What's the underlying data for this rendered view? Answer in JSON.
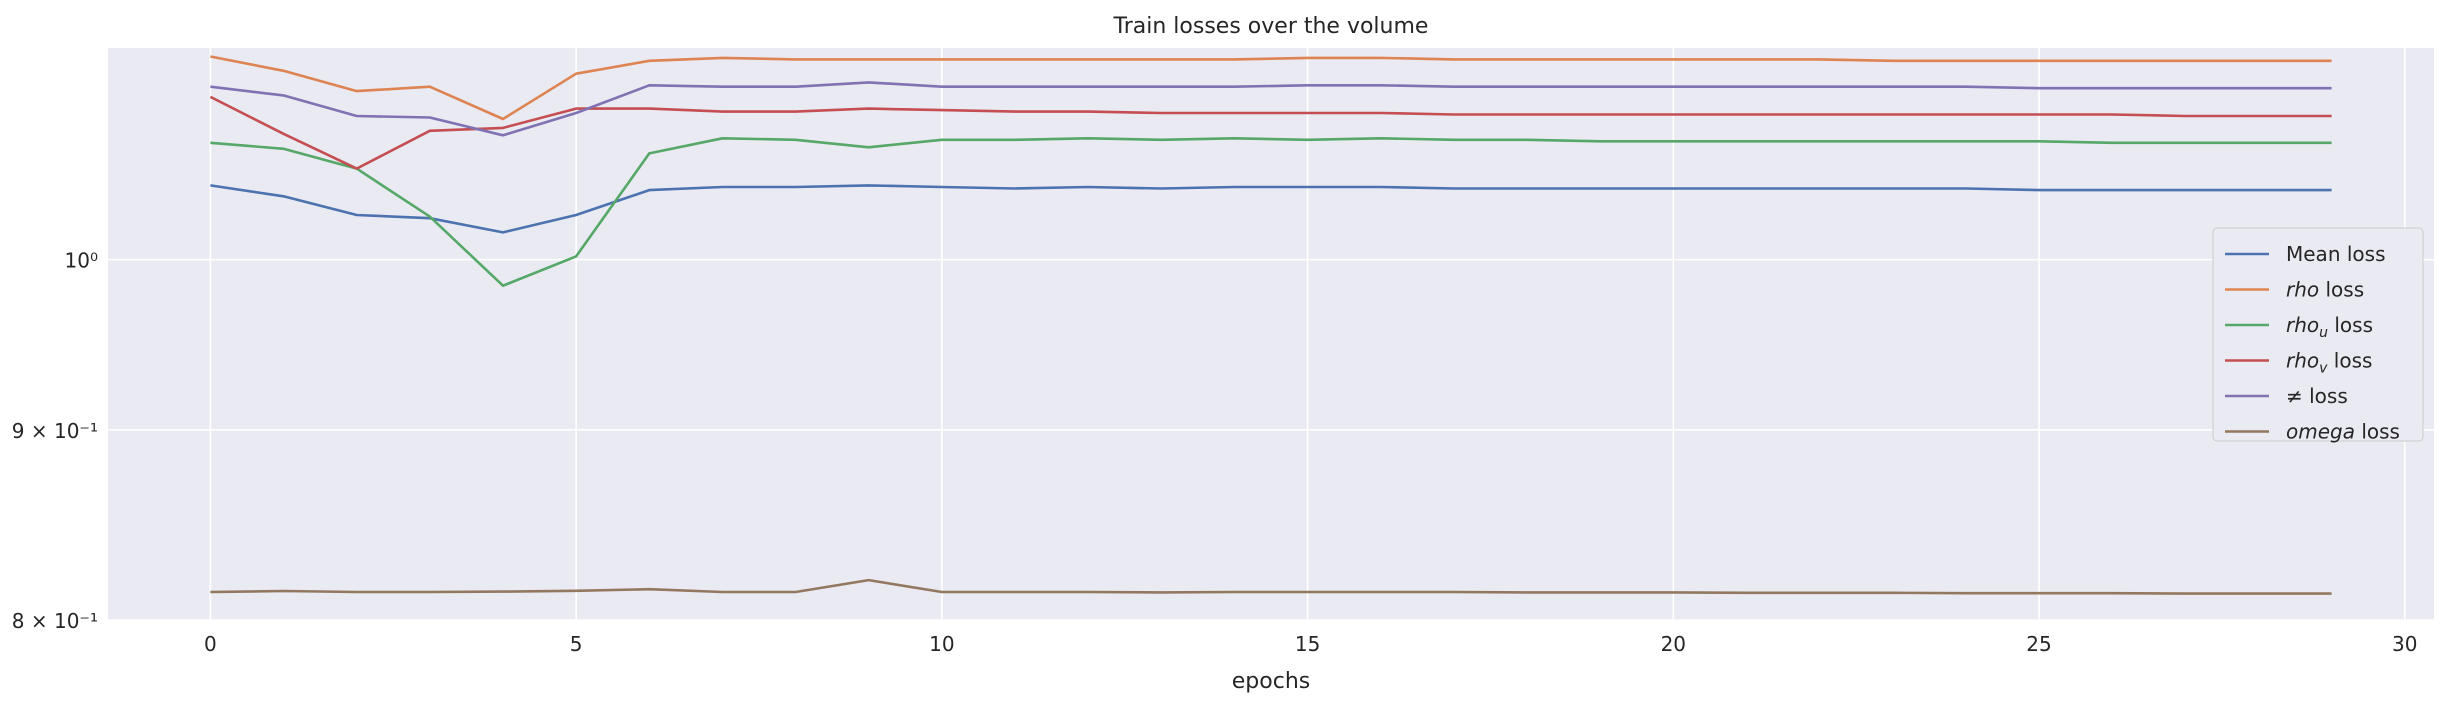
{
  "chart_data": {
    "type": "line",
    "title": "Train losses over the volume",
    "xlabel": "epochs",
    "ylabel": "",
    "xlim": [
      -1.4,
      30.4
    ],
    "ylim": [
      0.8,
      1.14
    ],
    "yscale": "log",
    "grid": true,
    "legend_position": "center-right",
    "x_ticks": [
      0,
      5,
      10,
      15,
      20,
      25,
      30
    ],
    "y_ticks": [
      {
        "value": 0.8,
        "label": "8 × 10⁻¹"
      },
      {
        "value": 0.9,
        "label": "9 × 10⁻¹"
      },
      {
        "value": 1.0,
        "label": "10⁰"
      }
    ],
    "x": [
      0,
      1,
      2,
      3,
      4,
      5,
      6,
      7,
      8,
      9,
      10,
      11,
      12,
      13,
      14,
      15,
      16,
      17,
      18,
      19,
      20,
      21,
      22,
      23,
      24,
      25,
      26,
      27,
      28,
      29
    ],
    "series": [
      {
        "name": "Mean loss",
        "color": "#4c72b0",
        "values": [
          1.047,
          1.04,
          1.028,
          1.026,
          1.017,
          1.028,
          1.044,
          1.046,
          1.046,
          1.047,
          1.046,
          1.045,
          1.046,
          1.045,
          1.046,
          1.046,
          1.046,
          1.045,
          1.045,
          1.045,
          1.045,
          1.045,
          1.045,
          1.045,
          1.045,
          1.044,
          1.044,
          1.044,
          1.044,
          1.044
        ]
      },
      {
        "name": "rho loss",
        "color": "#dd8452",
        "values": [
          1.134,
          1.124,
          1.11,
          1.113,
          1.091,
          1.122,
          1.131,
          1.133,
          1.132,
          1.132,
          1.132,
          1.132,
          1.132,
          1.132,
          1.132,
          1.133,
          1.133,
          1.132,
          1.132,
          1.132,
          1.132,
          1.132,
          1.132,
          1.131,
          1.131,
          1.131,
          1.131,
          1.131,
          1.131,
          1.131
        ]
      },
      {
        "name": "rho_u loss",
        "color": "#55a868",
        "values": [
          1.075,
          1.071,
          1.058,
          1.027,
          0.984,
          1.002,
          1.068,
          1.078,
          1.077,
          1.072,
          1.077,
          1.077,
          1.078,
          1.077,
          1.078,
          1.077,
          1.078,
          1.077,
          1.077,
          1.076,
          1.076,
          1.076,
          1.076,
          1.076,
          1.076,
          1.076,
          1.075,
          1.075,
          1.075,
          1.075
        ]
      },
      {
        "name": "rho_v loss",
        "color": "#c44e52",
        "values": [
          1.106,
          1.081,
          1.058,
          1.083,
          1.085,
          1.098,
          1.098,
          1.096,
          1.096,
          1.098,
          1.097,
          1.096,
          1.096,
          1.095,
          1.095,
          1.095,
          1.095,
          1.094,
          1.094,
          1.094,
          1.094,
          1.094,
          1.094,
          1.094,
          1.094,
          1.094,
          1.094,
          1.093,
          1.093,
          1.093
        ]
      },
      {
        "name": "≠ loss",
        "color": "#8172b3",
        "values": [
          1.113,
          1.107,
          1.093,
          1.092,
          1.08,
          1.095,
          1.114,
          1.113,
          1.113,
          1.116,
          1.113,
          1.113,
          1.113,
          1.113,
          1.113,
          1.114,
          1.114,
          1.113,
          1.113,
          1.113,
          1.113,
          1.113,
          1.113,
          1.113,
          1.113,
          1.112,
          1.112,
          1.112,
          1.112,
          1.112
        ]
      },
      {
        "name": "omega loss",
        "color": "#937860",
        "values": [
          0.814,
          0.8145,
          0.814,
          0.814,
          0.8142,
          0.8146,
          0.8154,
          0.814,
          0.814,
          0.82,
          0.814,
          0.814,
          0.814,
          0.8138,
          0.814,
          0.814,
          0.814,
          0.814,
          0.8138,
          0.8138,
          0.8138,
          0.8136,
          0.8136,
          0.8136,
          0.8134,
          0.8134,
          0.8134,
          0.8132,
          0.8132,
          0.8132
        ]
      }
    ],
    "legend": [
      {
        "base": "Mean loss",
        "sym": "",
        "sub": "",
        "rest": ""
      },
      {
        "base": "",
        "sym": "rho",
        "sub": "",
        "rest": " loss"
      },
      {
        "base": "",
        "sym": "rho",
        "sub": "u",
        "rest": " loss"
      },
      {
        "base": "",
        "sym": "rho",
        "sub": "v",
        "rest": " loss"
      },
      {
        "base": "≠ loss",
        "sym": "",
        "sub": "",
        "rest": ""
      },
      {
        "base": "",
        "sym": "omega",
        "sub": "",
        "rest": " loss"
      }
    ]
  }
}
